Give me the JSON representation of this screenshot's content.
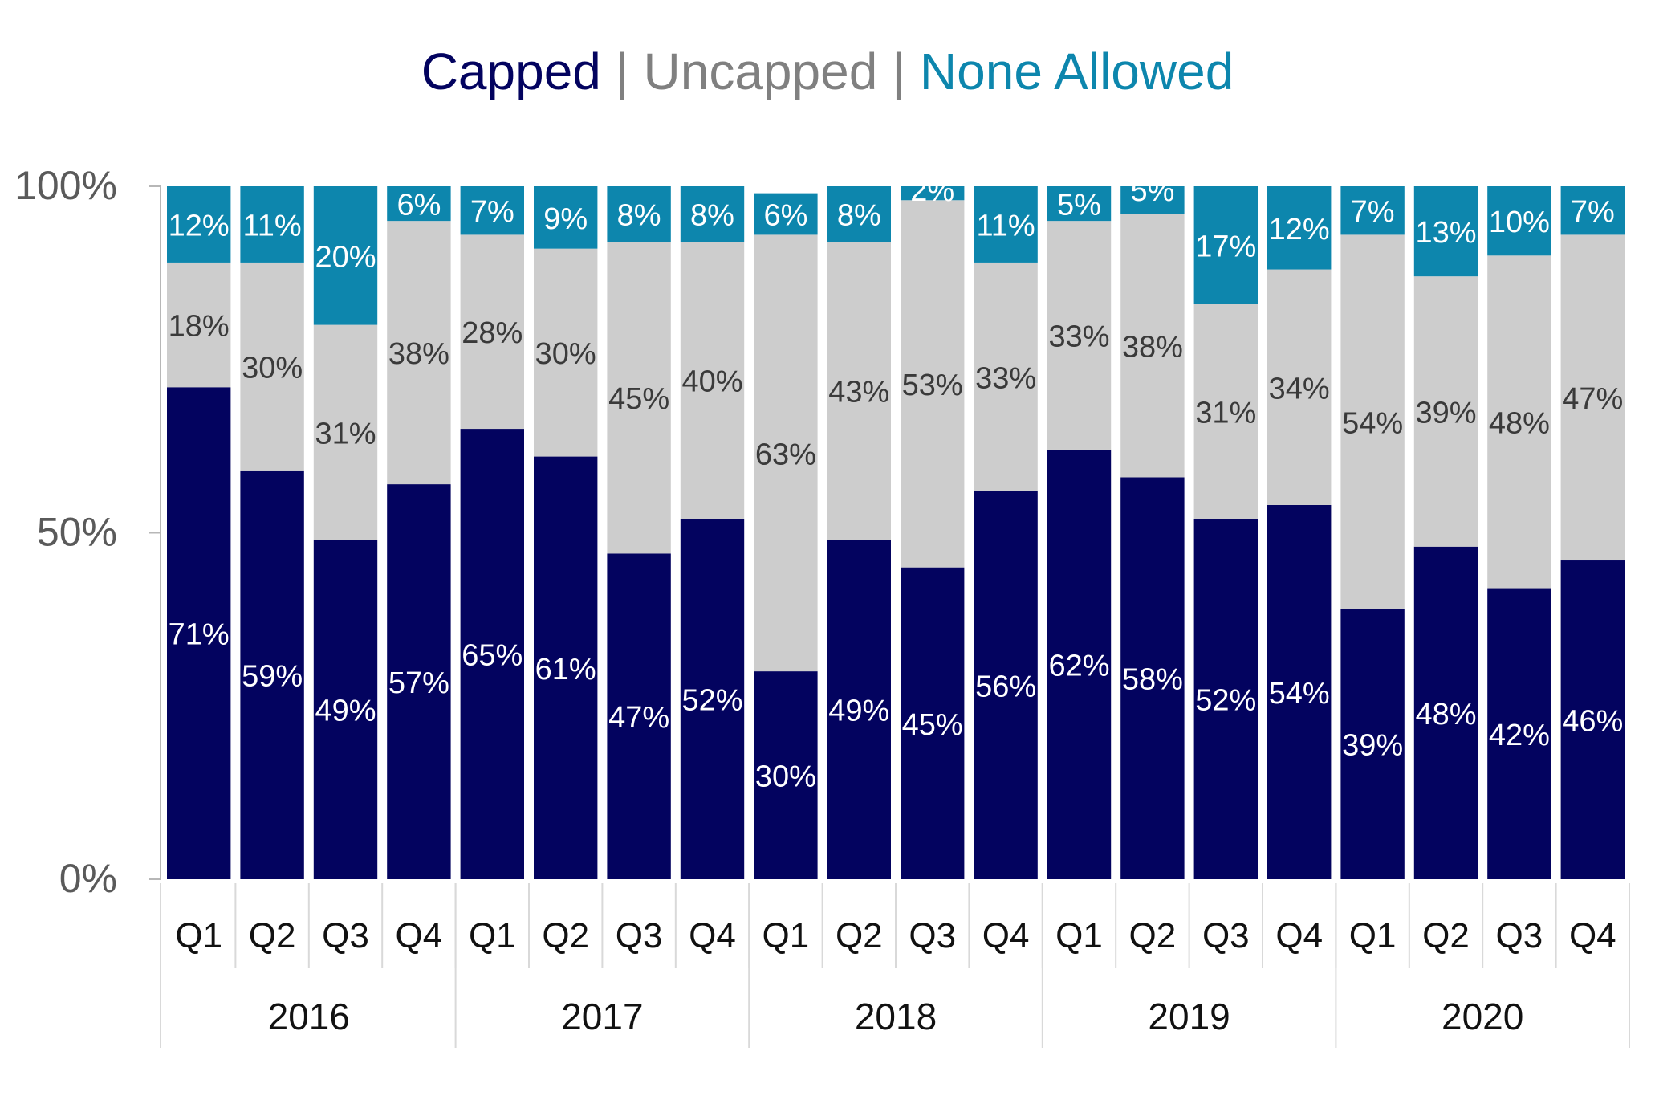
{
  "colors": {
    "capped": "#03035f",
    "uncapped": "#cdcdcd",
    "none_allowed": "#0d86ad",
    "axis": "#b7b7b7",
    "tick_text": "#5a5a5a",
    "label_dark": "#3a3a3a",
    "label_light": "#ffffff"
  },
  "legend_title": {
    "capped": "Capped",
    "separator": "|",
    "uncapped": "Uncapped",
    "none_allowed": "None Allowed"
  },
  "chart_data": {
    "type": "bar",
    "stacked": true,
    "title": "Capped | Uncapped | None Allowed",
    "ylim": [
      0,
      100
    ],
    "y_ticks": [
      "0%",
      "50%",
      "100%"
    ],
    "categories": [
      "Q1",
      "Q2",
      "Q3",
      "Q4",
      "Q1",
      "Q2",
      "Q3",
      "Q4",
      "Q1",
      "Q2",
      "Q3",
      "Q4",
      "Q1",
      "Q2",
      "Q3",
      "Q4",
      "Q1",
      "Q2",
      "Q3",
      "Q4"
    ],
    "groups": [
      {
        "label": "2016",
        "count": 4
      },
      {
        "label": "2017",
        "count": 4
      },
      {
        "label": "2018",
        "count": 4
      },
      {
        "label": "2019",
        "count": 4
      },
      {
        "label": "2020",
        "count": 4
      }
    ],
    "series": [
      {
        "name": "Capped",
        "color_key": "capped",
        "values": [
          71,
          59,
          49,
          57,
          65,
          61,
          47,
          52,
          30,
          49,
          45,
          56,
          62,
          58,
          52,
          54,
          39,
          48,
          42,
          46
        ]
      },
      {
        "name": "Uncapped",
        "color_key": "uncapped",
        "values": [
          18,
          30,
          31,
          38,
          28,
          30,
          45,
          40,
          63,
          43,
          53,
          33,
          33,
          38,
          31,
          34,
          54,
          39,
          48,
          47
        ]
      },
      {
        "name": "None Allowed",
        "color_key": "none_allowed",
        "values": [
          12,
          11,
          20,
          6,
          7,
          9,
          8,
          8,
          6,
          8,
          2,
          11,
          5,
          5,
          17,
          12,
          7,
          13,
          10,
          7
        ]
      }
    ],
    "data_label_suffix": "%",
    "legend": "top-center",
    "grid": false
  }
}
